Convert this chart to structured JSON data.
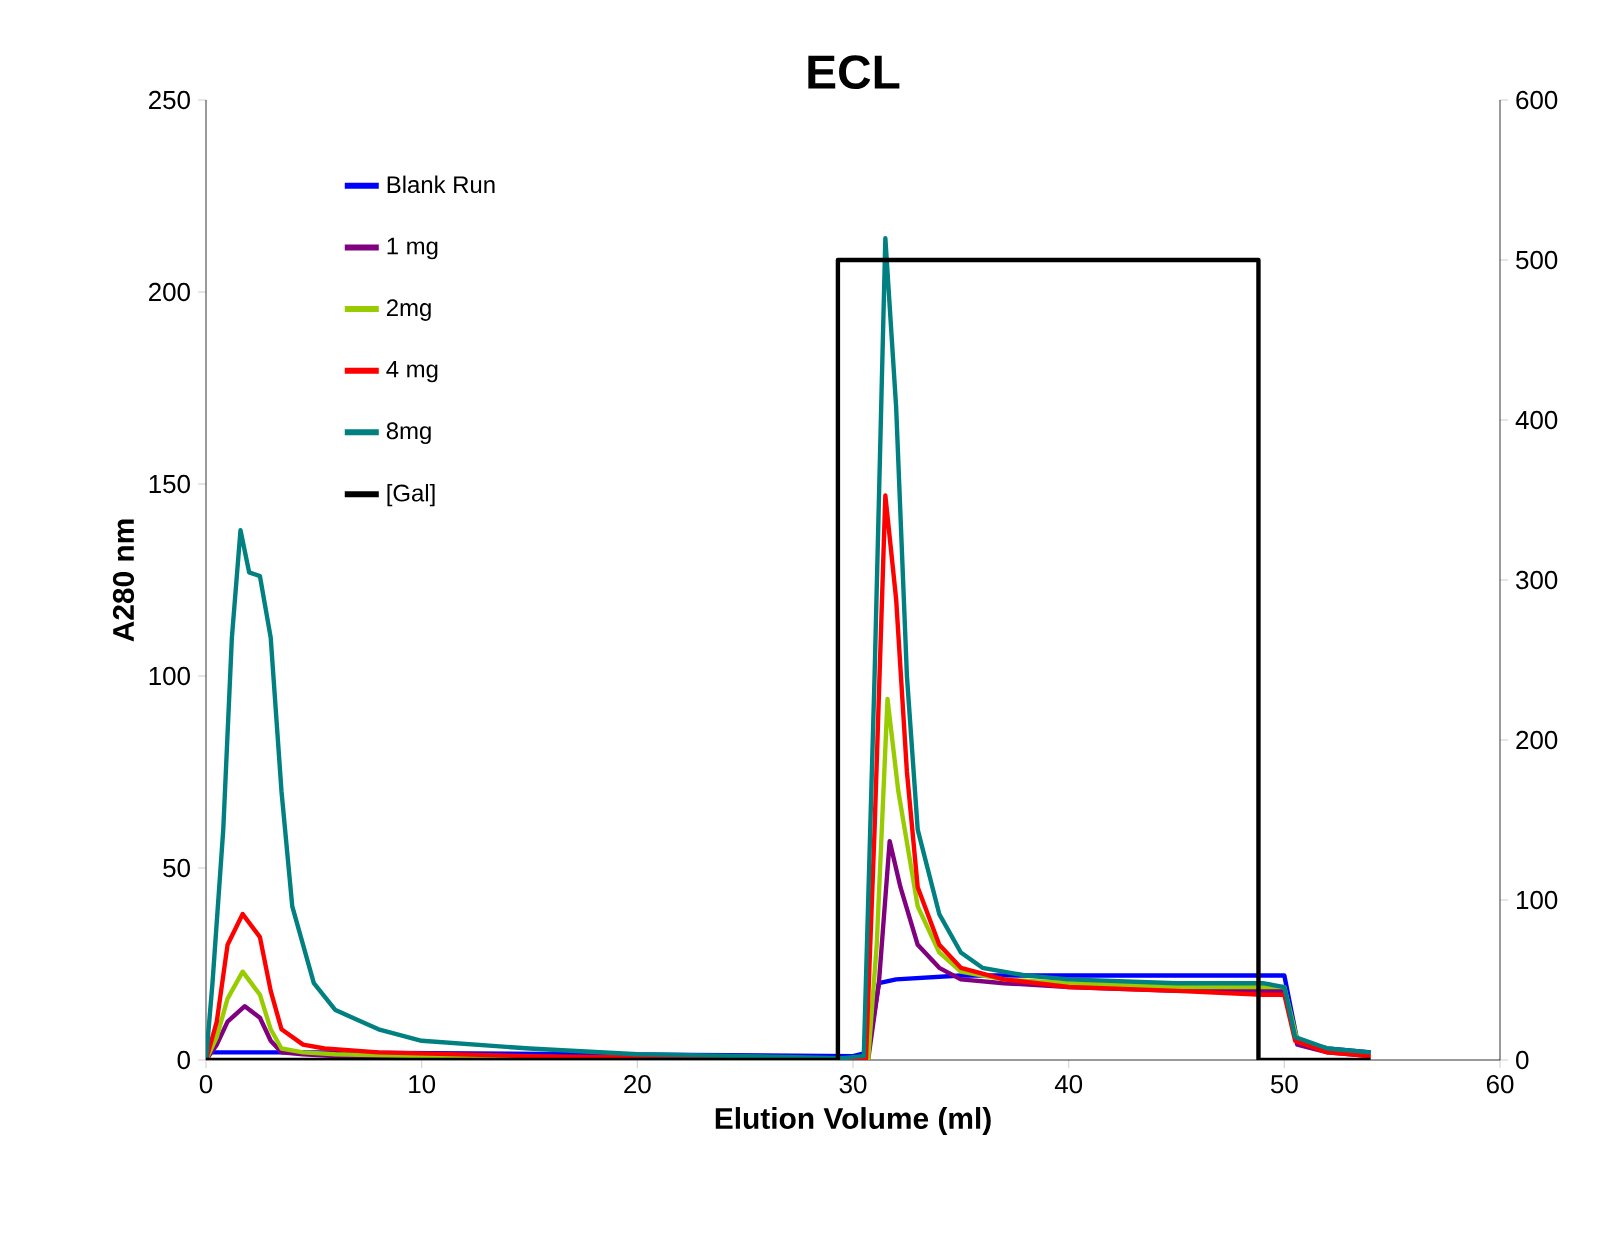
{
  "chart_data": {
    "type": "line",
    "title": "ECL",
    "xlabel": "Elution Volume (ml)",
    "ylabel": "A280 nm",
    "xlim": [
      0,
      60
    ],
    "xticks": [
      0,
      10,
      20,
      30,
      40,
      50,
      60
    ],
    "ylim": [
      0,
      250
    ],
    "yticks": [
      0,
      50,
      100,
      150,
      200,
      250
    ],
    "y2lim": [
      0,
      600
    ],
    "y2ticks": [
      0,
      100,
      200,
      300,
      400,
      500,
      600
    ],
    "legend": "top left",
    "grid": false,
    "series": [
      {
        "name": "Blank Run",
        "color": "#0000ff",
        "x": [
          0,
          5,
          30,
          30.7,
          31.2,
          32,
          35,
          40,
          45,
          49,
          50,
          50.6,
          52,
          54
        ],
        "values": [
          2,
          2,
          1,
          2,
          20,
          21,
          22,
          22,
          22,
          22,
          22,
          5,
          3,
          2
        ]
      },
      {
        "name": "1 mg",
        "color": "#800080",
        "x": [
          0,
          0.5,
          1,
          1.8,
          2.5,
          3,
          3.5,
          4.5,
          6,
          10,
          20,
          30.7,
          31.2,
          31.7,
          32.2,
          33,
          34,
          35,
          37,
          40,
          45,
          49,
          50,
          50.6,
          52,
          54
        ],
        "values": [
          0,
          4,
          10,
          14,
          11,
          5,
          2,
          1.5,
          1,
          1,
          0.5,
          0,
          20,
          57,
          45,
          30,
          24,
          21,
          20,
          19,
          18,
          18,
          18,
          4,
          2,
          1
        ]
      },
      {
        "name": "2mg",
        "color": "#99cc00",
        "x": [
          0,
          0.5,
          1,
          1.7,
          2.5,
          3,
          3.5,
          4.5,
          6,
          10,
          20,
          30.7,
          31.1,
          31.6,
          32.1,
          33,
          34,
          35,
          37,
          40,
          45,
          49,
          50,
          50.6,
          52,
          54
        ],
        "values": [
          0,
          6,
          16,
          23,
          17,
          8,
          3,
          2,
          1.5,
          1,
          0.5,
          0,
          30,
          94,
          70,
          40,
          28,
          23,
          21,
          20,
          19,
          19,
          19,
          5,
          3,
          1
        ]
      },
      {
        "name": "4 mg",
        "color": "#ff0000",
        "x": [
          0,
          0.5,
          1,
          1.7,
          2.5,
          3,
          3.5,
          4.5,
          5.5,
          8,
          15,
          30.6,
          31,
          31.5,
          32,
          32.5,
          33,
          34,
          35,
          37,
          40,
          45,
          49,
          50,
          50.5,
          52,
          54
        ],
        "values": [
          0,
          10,
          30,
          38,
          32,
          18,
          8,
          4,
          3,
          2,
          1,
          0,
          60,
          147,
          120,
          75,
          45,
          30,
          24,
          21,
          19,
          18,
          17,
          17,
          5,
          2,
          1
        ]
      },
      {
        "name": "8mg",
        "color": "#008080",
        "x": [
          0,
          0.3,
          0.8,
          1.2,
          1.6,
          2,
          2.5,
          3,
          3.5,
          4,
          5,
          6,
          8,
          10,
          15,
          20,
          25,
          29.5,
          30.5,
          31,
          31.5,
          32,
          32.5,
          33,
          34,
          35,
          36,
          38,
          40,
          45,
          49,
          50,
          50.5,
          52,
          54
        ],
        "values": [
          0,
          20,
          60,
          110,
          138,
          127,
          126,
          110,
          70,
          40,
          20,
          13,
          8,
          5,
          3,
          1.5,
          1,
          0.5,
          1,
          100,
          214,
          170,
          100,
          60,
          38,
          28,
          24,
          22,
          21,
          20,
          20,
          19,
          6,
          3,
          2
        ]
      },
      {
        "name": "[Gal]",
        "color": "#000000",
        "axis": "y2",
        "x": [
          0,
          29.3,
          29.3,
          48.8,
          48.8,
          54
        ],
        "values": [
          0,
          0,
          500,
          500,
          0,
          0
        ]
      }
    ]
  }
}
